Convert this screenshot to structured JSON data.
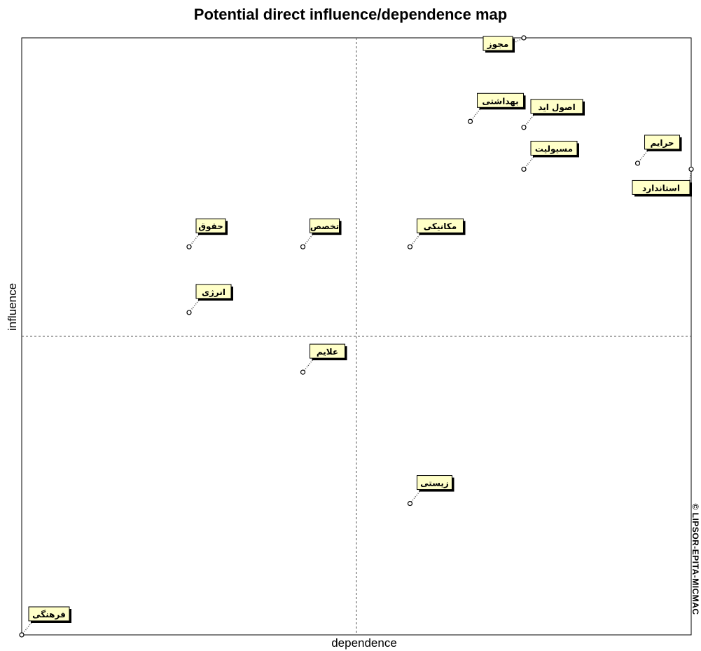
{
  "chart_data": {
    "type": "scatter",
    "title": "Potential direct influence/dependence map",
    "xlabel": "dependence",
    "ylabel": "influence",
    "watermark": "© LIPSOR-EPITA-MICMAC",
    "xlim": [
      0,
      100
    ],
    "ylim": [
      0,
      100
    ],
    "x_divider": 50,
    "y_divider": 50,
    "grid": false,
    "points": [
      {
        "label": "مجوز",
        "x": 75,
        "y": 100
      },
      {
        "label": "بهداشتی",
        "x": 67,
        "y": 86
      },
      {
        "label": "اصول اید",
        "x": 75,
        "y": 85
      },
      {
        "label": "حرایم",
        "x": 92,
        "y": 79
      },
      {
        "label": "مسیولیت",
        "x": 75,
        "y": 78
      },
      {
        "label": "استاندارد",
        "x": 100,
        "y": 78
      },
      {
        "label": "حقوق",
        "x": 25,
        "y": 65
      },
      {
        "label": "تخصص",
        "x": 42,
        "y": 65
      },
      {
        "label": "مکانیکی",
        "x": 58,
        "y": 65
      },
      {
        "label": "انرژی",
        "x": 25,
        "y": 54
      },
      {
        "label": "علایم",
        "x": 42,
        "y": 44
      },
      {
        "label": "زیستی",
        "x": 58,
        "y": 22
      },
      {
        "label": "فرهنگی",
        "x": 0,
        "y": 0
      }
    ]
  }
}
